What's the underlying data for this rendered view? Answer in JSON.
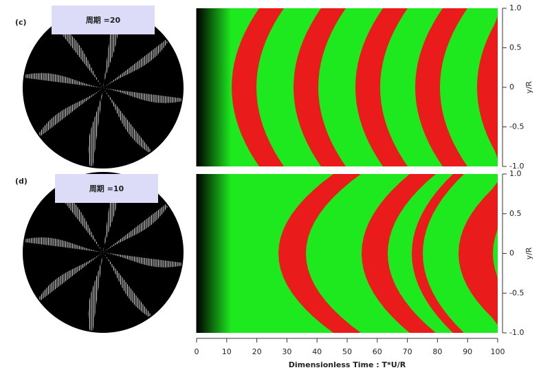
{
  "chart_data": [
    {
      "type": "heatmap",
      "panel_label": "(c)",
      "title": "周期 =20",
      "ylabel": "y/R",
      "ylim": [
        -1,
        1
      ],
      "yticks": [
        {
          "value": 1,
          "label": "1.0"
        },
        0.5,
        0,
        -0.5,
        {
          "value": -1,
          "label": "-1.0"
        }
      ]
    },
    {
      "type": "heatmap",
      "panel_label": "(d)",
      "title": "周期 =10",
      "ylabel": "y/R",
      "xlabel": "Dimensionless Time : T*U/R",
      "xlim": [
        0,
        100
      ],
      "xticks": [
        0,
        10,
        20,
        30,
        40,
        50,
        60,
        70,
        80,
        90,
        100
      ],
      "ylim": [
        -1,
        1
      ],
      "yticks": [
        {
          "value": 1,
          "label": "1.0"
        },
        0.5,
        0,
        -0.5,
        {
          "value": -1,
          "label": "-1.0"
        }
      ]
    }
  ]
}
